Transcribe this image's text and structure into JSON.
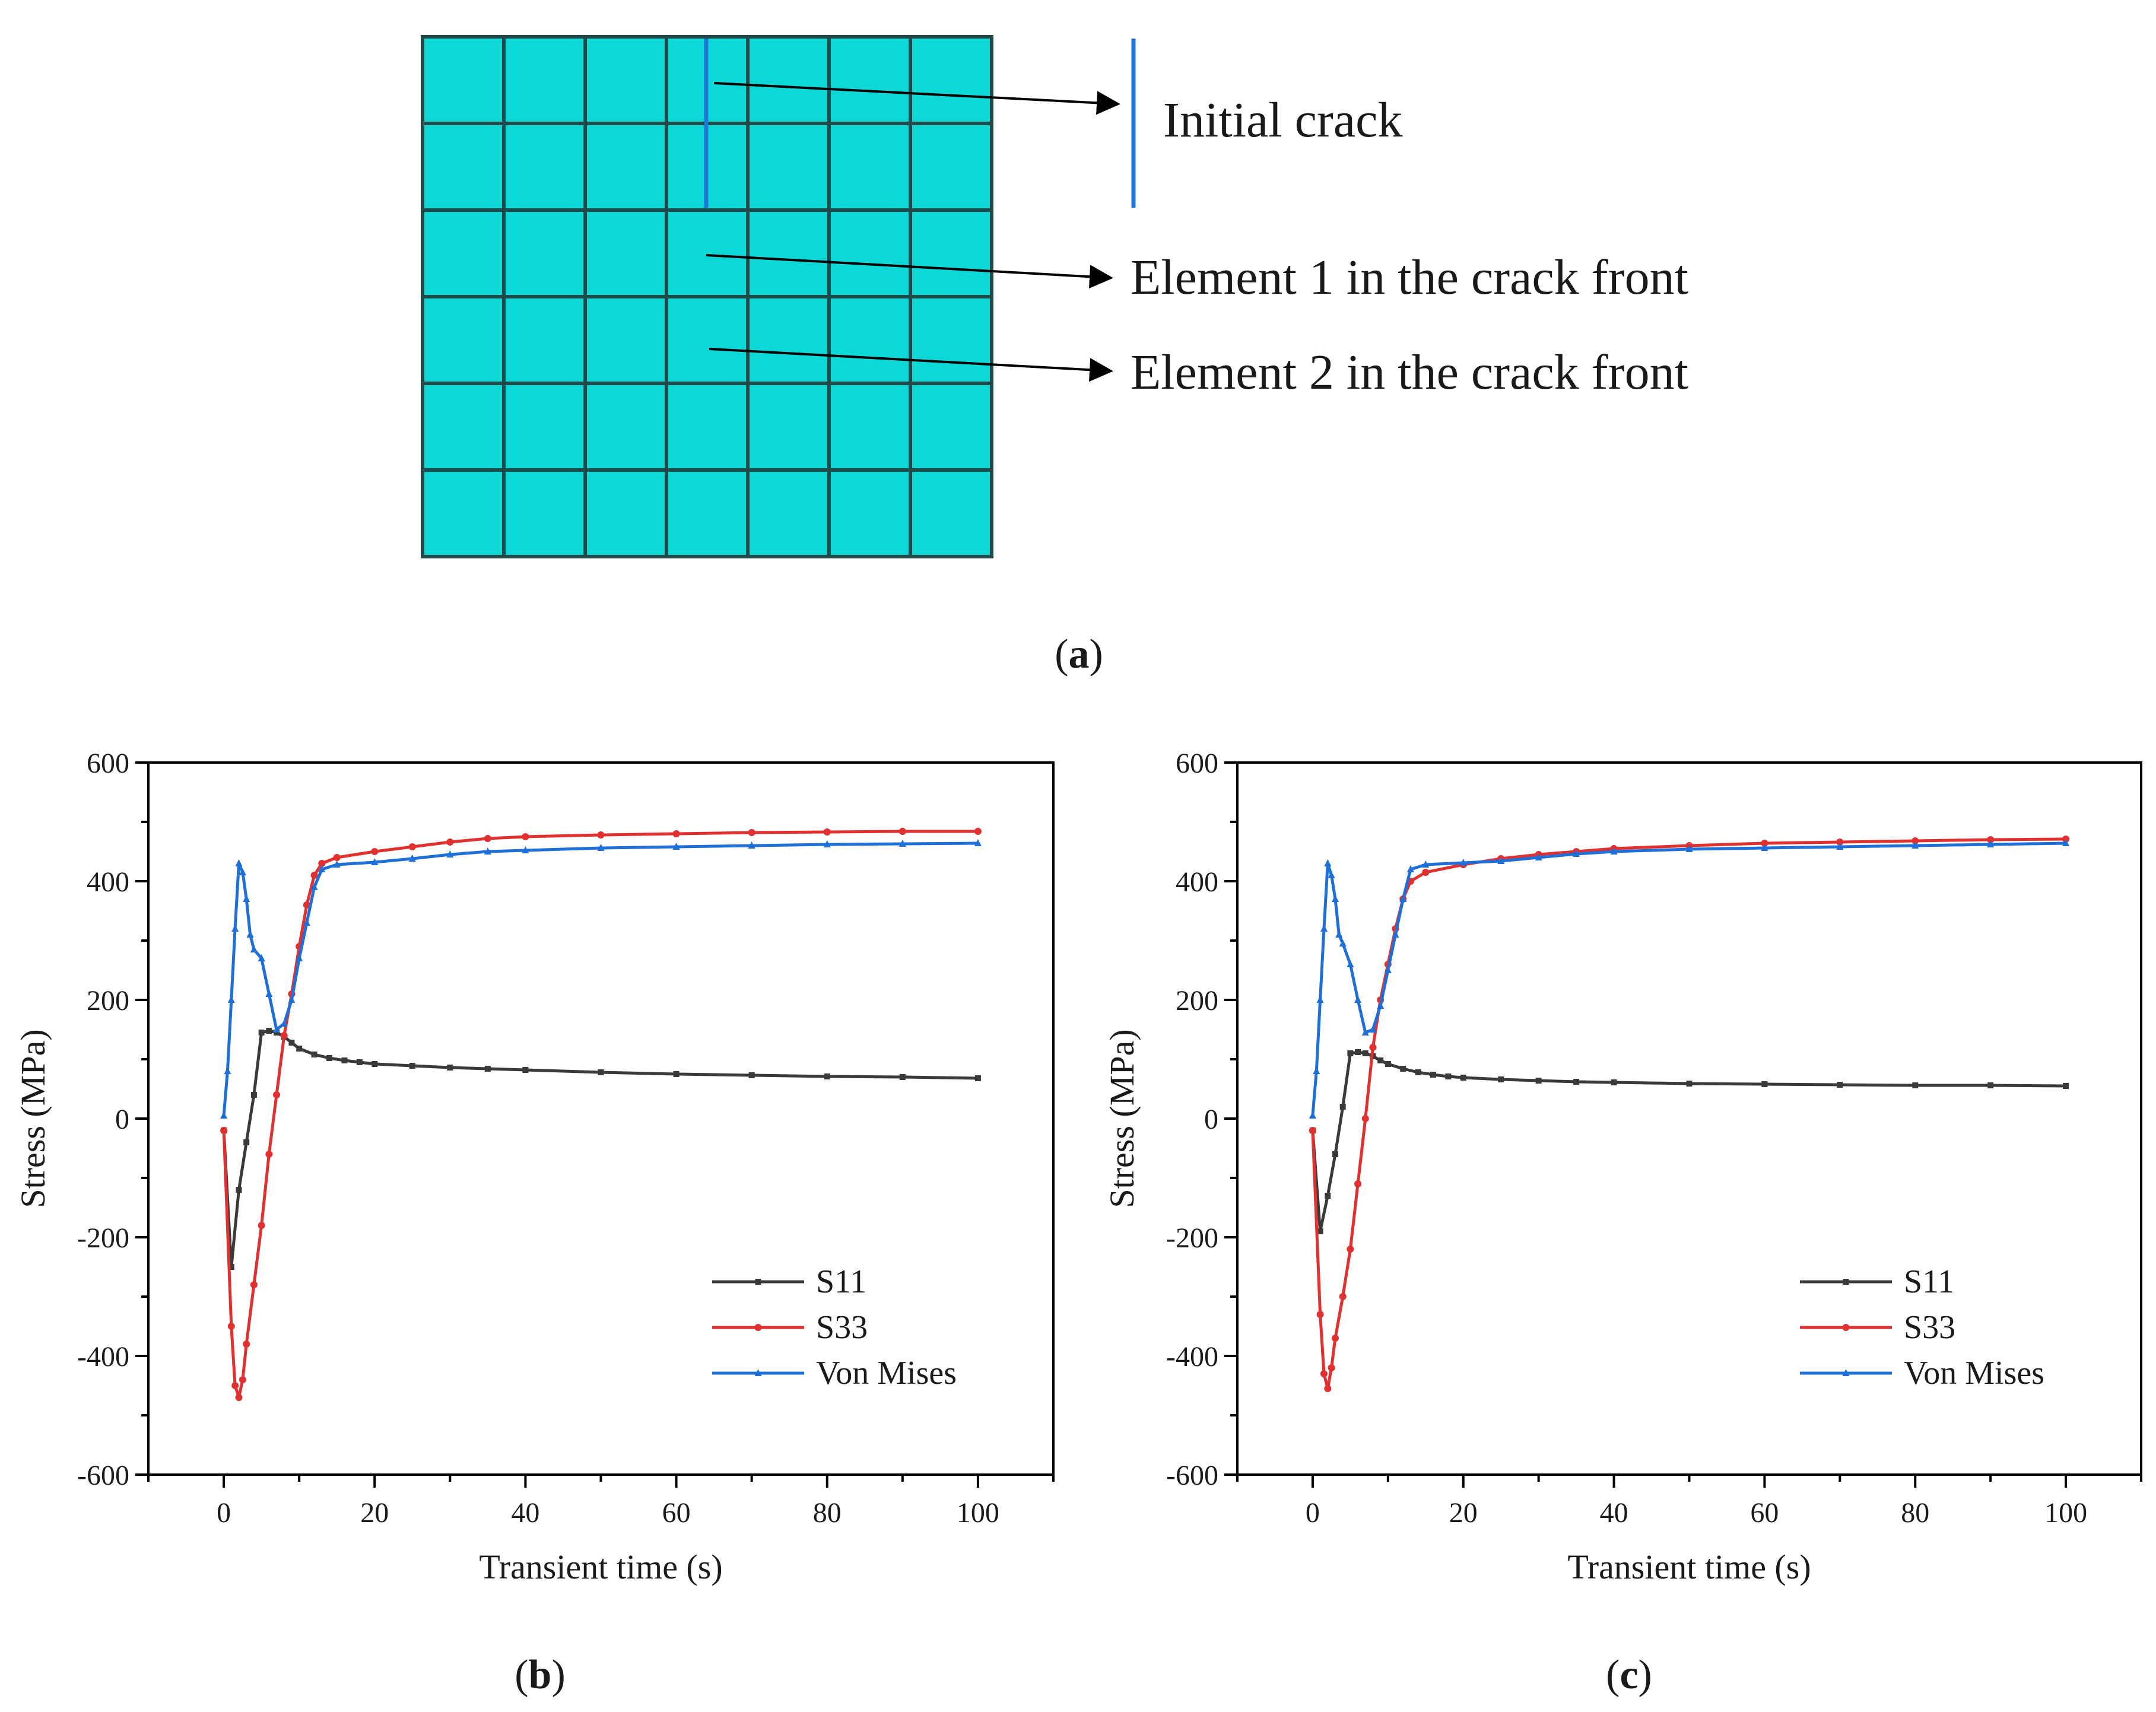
{
  "panel_a": {
    "caption": "(a)",
    "caption_letter": "a",
    "labels": {
      "initial_crack": "Initial crack",
      "element1": "Element 1 in the crack front",
      "element2": "Element 2 in the crack front"
    },
    "mesh": {
      "columns": 7,
      "rows": 6
    },
    "colors": {
      "mesh_fill": "#0dd8d8",
      "mesh_line": "#1f4a4a",
      "crack": "#1f78d8"
    }
  },
  "chart_data": [
    {
      "id": "b",
      "caption": "(b)",
      "caption_letter": "b",
      "type": "line",
      "title": "",
      "xlabel": "Transient time (s)",
      "ylabel": "Stress (MPa)",
      "xlim": [
        -10,
        110
      ],
      "ylim": [
        -600,
        600
      ],
      "xticks": [
        0,
        20,
        40,
        60,
        80,
        100
      ],
      "yticks": [
        -600,
        -400,
        -200,
        0,
        200,
        400,
        600
      ],
      "xtick_labels": [
        "0",
        "20",
        "40",
        "60",
        "80",
        "100"
      ],
      "ytick_labels": [
        "-600",
        "-400",
        "-200",
        "0",
        "200",
        "400",
        "600"
      ],
      "grid": false,
      "legend_position": "bottom-right",
      "series": [
        {
          "name": "S11",
          "color": "#3a3a3a",
          "marker": "square",
          "x": [
            0,
            1,
            2,
            3,
            4,
            5,
            6,
            7,
            8,
            9,
            10,
            12,
            14,
            16,
            18,
            20,
            25,
            30,
            35,
            40,
            50,
            60,
            70,
            80,
            90,
            100
          ],
          "y": [
            -20,
            -250,
            -120,
            -40,
            40,
            145,
            148,
            145,
            138,
            128,
            118,
            108,
            102,
            98,
            95,
            92,
            89,
            86,
            84,
            82,
            78,
            75,
            73,
            71,
            70,
            68
          ]
        },
        {
          "name": "S33",
          "color": "#e03030",
          "marker": "circle",
          "x": [
            0,
            1,
            1.5,
            2,
            2.5,
            3,
            4,
            5,
            6,
            7,
            8,
            9,
            10,
            11,
            12,
            13,
            15,
            20,
            25,
            30,
            35,
            40,
            50,
            60,
            70,
            80,
            90,
            100
          ],
          "y": [
            -20,
            -350,
            -450,
            -470,
            -440,
            -380,
            -280,
            -180,
            -60,
            40,
            140,
            210,
            290,
            360,
            410,
            430,
            440,
            450,
            458,
            466,
            472,
            475,
            478,
            480,
            482,
            483,
            484,
            484
          ]
        },
        {
          "name": "Von Mises",
          "color": "#1f6fd8",
          "marker": "triangle",
          "x": [
            0,
            0.5,
            1,
            1.5,
            2,
            2.5,
            3,
            3.5,
            4,
            5,
            6,
            7,
            8,
            9,
            10,
            11,
            12,
            13,
            15,
            20,
            25,
            30,
            35,
            40,
            50,
            60,
            70,
            80,
            90,
            100
          ],
          "y": [
            5,
            80,
            200,
            320,
            430,
            415,
            370,
            310,
            285,
            270,
            210,
            150,
            160,
            200,
            270,
            330,
            390,
            420,
            428,
            432,
            438,
            445,
            450,
            452,
            456,
            458,
            460,
            462,
            463,
            464
          ]
        }
      ]
    },
    {
      "id": "c",
      "caption": "(c)",
      "caption_letter": "c",
      "type": "line",
      "title": "",
      "xlabel": "Transient time (s)",
      "ylabel": "Stress (MPa)",
      "xlim": [
        -10,
        110
      ],
      "ylim": [
        -600,
        600
      ],
      "xticks": [
        0,
        20,
        40,
        60,
        80,
        100
      ],
      "yticks": [
        -600,
        -400,
        -200,
        0,
        200,
        400,
        600
      ],
      "xtick_labels": [
        "0",
        "20",
        "40",
        "60",
        "80",
        "100"
      ],
      "ytick_labels": [
        "-600",
        "-400",
        "-200",
        "0",
        "200",
        "400",
        "600"
      ],
      "grid": false,
      "legend_position": "bottom-right",
      "series": [
        {
          "name": "S11",
          "color": "#3a3a3a",
          "marker": "square",
          "x": [
            0,
            1,
            2,
            3,
            4,
            5,
            6,
            7,
            8,
            9,
            10,
            12,
            14,
            16,
            18,
            20,
            25,
            30,
            35,
            40,
            50,
            60,
            70,
            80,
            90,
            100
          ],
          "y": [
            -20,
            -190,
            -130,
            -60,
            20,
            110,
            112,
            110,
            105,
            98,
            92,
            84,
            78,
            74,
            71,
            69,
            66,
            64,
            62,
            61,
            59,
            58,
            57,
            56,
            56,
            55
          ]
        },
        {
          "name": "S33",
          "color": "#e03030",
          "marker": "circle",
          "x": [
            0,
            1,
            1.5,
            2,
            2.5,
            3,
            4,
            5,
            6,
            7,
            8,
            9,
            10,
            11,
            12,
            13,
            15,
            20,
            25,
            30,
            35,
            40,
            50,
            60,
            70,
            80,
            90,
            100
          ],
          "y": [
            -20,
            -330,
            -430,
            -455,
            -420,
            -370,
            -300,
            -220,
            -110,
            0,
            120,
            200,
            260,
            320,
            370,
            400,
            415,
            428,
            438,
            445,
            450,
            455,
            460,
            464,
            466,
            468,
            470,
            471
          ]
        },
        {
          "name": "Von Mises",
          "color": "#1f6fd8",
          "marker": "triangle",
          "x": [
            0,
            0.5,
            1,
            1.5,
            2,
            2.5,
            3,
            3.5,
            4,
            5,
            6,
            7,
            8,
            9,
            10,
            11,
            12,
            13,
            15,
            20,
            25,
            30,
            35,
            40,
            50,
            60,
            70,
            80,
            90,
            100
          ],
          "y": [
            5,
            80,
            200,
            320,
            430,
            410,
            370,
            310,
            295,
            260,
            200,
            145,
            150,
            190,
            250,
            310,
            370,
            420,
            428,
            431,
            434,
            440,
            446,
            450,
            454,
            456,
            458,
            460,
            462,
            464
          ]
        }
      ]
    }
  ]
}
